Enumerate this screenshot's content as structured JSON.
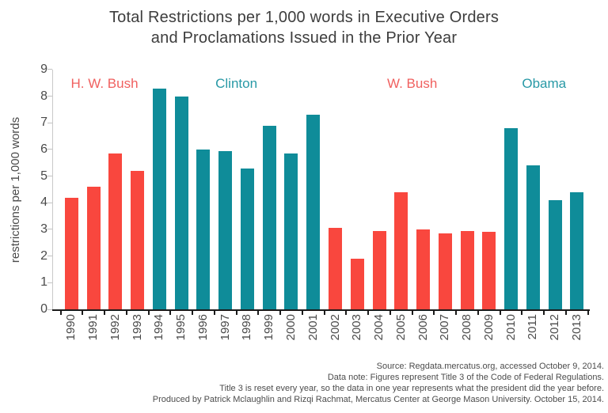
{
  "title": {
    "line1": "Total Restrictions per 1,000 words in Executive Orders",
    "line2": "and Proclamations Issued in the Prior Year"
  },
  "chart_data": {
    "type": "bar",
    "title": "Total Restrictions per 1,000 words in Executive Orders and Proclamations Issued in the Prior Year",
    "xlabel": "",
    "ylabel": "restrictions per 1,000 words",
    "ylim": [
      0,
      9
    ],
    "yticks": [
      0,
      1,
      2,
      3,
      4,
      5,
      6,
      7,
      8,
      9
    ],
    "grid": false,
    "legend_position": "none",
    "categories": [
      "1990",
      "1991",
      "1992",
      "1993",
      "1994",
      "1995",
      "1996",
      "1997",
      "1998",
      "1999",
      "2000",
      "2001",
      "2002",
      "2003",
      "2004",
      "2005",
      "2006",
      "2007",
      "2008",
      "2009",
      "2010",
      "2011",
      "2012",
      "2013"
    ],
    "values": [
      4.2,
      4.6,
      5.85,
      5.2,
      8.3,
      8.0,
      6.0,
      5.95,
      5.3,
      6.9,
      5.85,
      7.3,
      3.05,
      1.9,
      2.95,
      4.4,
      3.0,
      2.85,
      2.95,
      2.9,
      6.8,
      5.4,
      4.1,
      4.4
    ],
    "eras": [
      {
        "name": "H. W. Bush",
        "from": "1990",
        "to": "1993",
        "bar_color": "#f9473e",
        "label_color": "#f0605f"
      },
      {
        "name": "Clinton",
        "from": "1994",
        "to": "2001",
        "bar_color": "#0f8c99",
        "label_color": "#2899a6"
      },
      {
        "name": "W. Bush",
        "from": "2002",
        "to": "2009",
        "bar_color": "#f9473e",
        "label_color": "#f0605f"
      },
      {
        "name": "Obama",
        "from": "2010",
        "to": "2013",
        "bar_color": "#0f8c99",
        "label_color": "#2899a6"
      }
    ]
  },
  "footer": {
    "lines": [
      "Source: Regdata.mercatus.org, accessed October 9, 2014.",
      "Data note: Figures represent Title 3 of the Code of Federal Regulations.",
      "Title 3 is reset every year, so the data in one year represents what the president did the year before.",
      "Produced by Patrick Mclaughlin and Rizqi Rachmat, Mercatus Center at George Mason University. October 15, 2014."
    ]
  },
  "colors": {
    "bar_red": "#f9473e",
    "bar_teal": "#0f8c99",
    "x_axis": "#1a1a1a",
    "y_axis": "#c9c9c9",
    "title_text": "#3d3d3d",
    "tick_text": "#4a4a4a",
    "footer_text": "#4c4c4c",
    "background": "#ffffff"
  }
}
